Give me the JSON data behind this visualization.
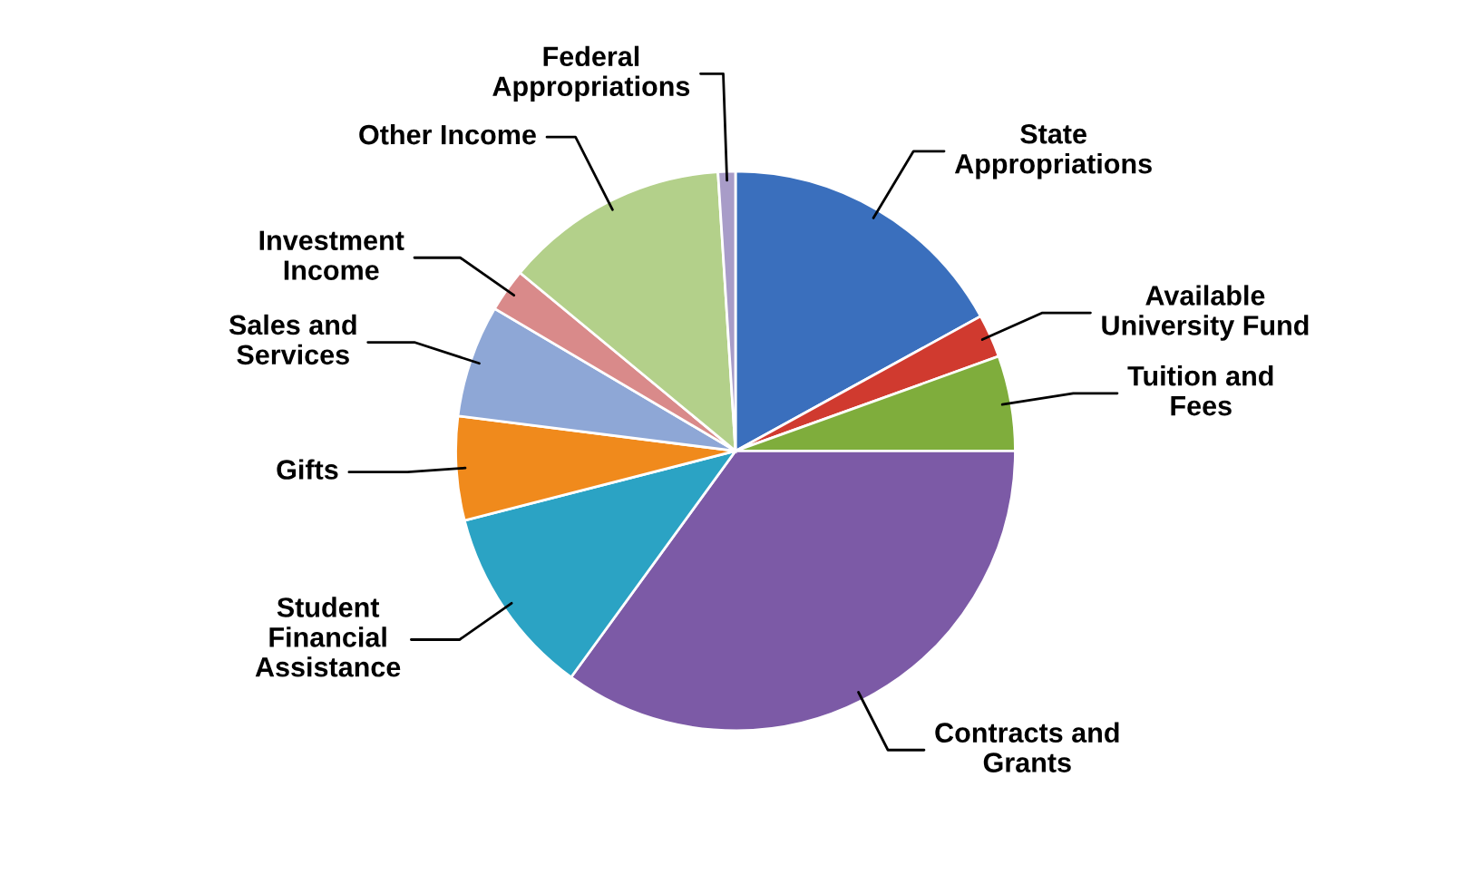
{
  "chart_data": {
    "type": "pie",
    "categories": [
      "State\nAppropriations",
      "Available\nUniversity Fund",
      "Tuition and\nFees",
      "Contracts and\nGrants",
      "Student\nFinancial\nAssistance",
      "Gifts",
      "Sales and\nServices",
      "Investment\nIncome",
      "Other Income",
      "Federal\nAppropriations"
    ],
    "values": [
      17,
      2.5,
      5.5,
      35,
      11,
      6,
      6.5,
      2.5,
      13,
      1
    ],
    "colors": [
      "#3a6fbd",
      "#d03a2f",
      "#7fad3c",
      "#7c5aa6",
      "#2ba3c4",
      "#f08a1c",
      "#8ea7d6",
      "#d98a8a",
      "#b3d08a",
      "#a89cc8"
    ]
  }
}
